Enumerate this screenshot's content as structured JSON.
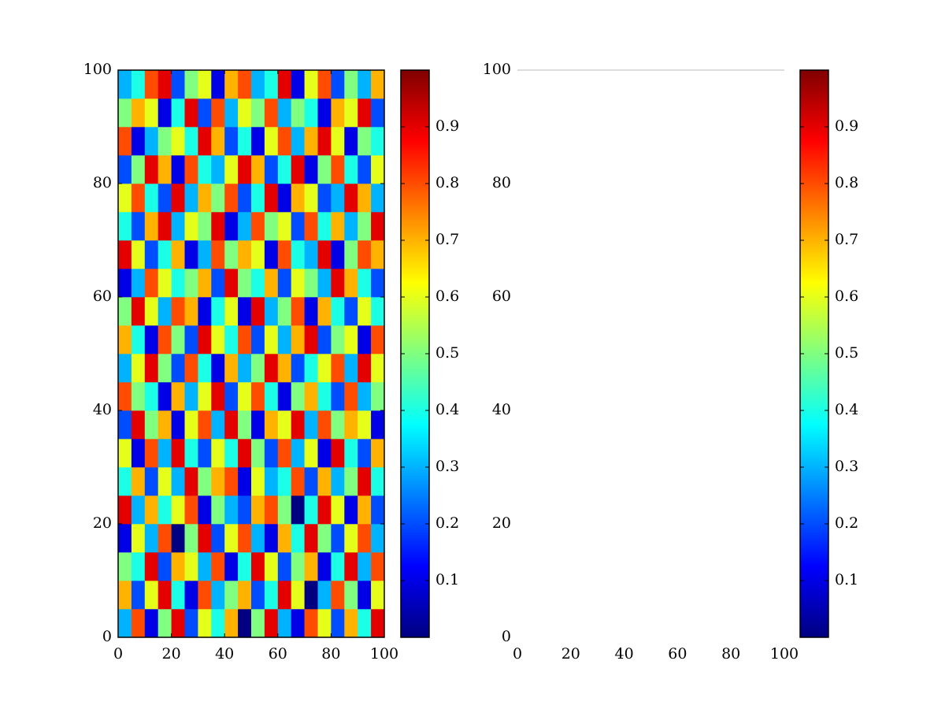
{
  "chart_data": [
    {
      "type": "heatmap",
      "xlim": [
        0,
        100
      ],
      "ylim": [
        0,
        100
      ],
      "xticks": [
        0,
        20,
        40,
        60,
        80,
        100
      ],
      "yticks": [
        0,
        20,
        40,
        60,
        80,
        100
      ],
      "frame": true,
      "colormap": "jet",
      "clim": [
        0,
        1
      ],
      "colorbar_ticks": [
        0.1,
        0.2,
        0.3,
        0.4,
        0.5,
        0.6,
        0.7,
        0.8,
        0.9
      ],
      "values": [
        [
          0.3,
          0.8,
          0.1,
          0.5,
          0.9,
          0.2,
          0.6,
          0.4,
          0.7,
          0.0,
          0.5,
          0.9,
          0.3,
          0.1,
          0.8,
          0.6,
          0.2,
          0.7,
          0.4,
          0.9
        ],
        [
          0.7,
          0.2,
          0.6,
          0.9,
          0.4,
          0.1,
          0.8,
          0.3,
          0.5,
          0.7,
          0.2,
          0.4,
          0.9,
          0.6,
          0.0,
          0.3,
          0.8,
          0.5,
          0.1,
          0.6
        ],
        [
          0.5,
          0.4,
          0.9,
          0.2,
          0.7,
          0.6,
          0.3,
          0.8,
          0.1,
          0.4,
          0.9,
          0.6,
          0.2,
          0.5,
          0.7,
          0.1,
          0.4,
          0.9,
          0.3,
          0.8
        ],
        [
          0.1,
          0.6,
          0.3,
          0.8,
          0.0,
          0.5,
          0.9,
          0.2,
          0.6,
          0.8,
          0.3,
          0.1,
          0.7,
          0.4,
          0.9,
          0.5,
          0.2,
          0.6,
          0.8,
          0.3
        ],
        [
          0.9,
          0.3,
          0.7,
          0.4,
          0.6,
          0.8,
          0.1,
          0.5,
          0.3,
          0.2,
          0.7,
          0.8,
          0.5,
          0.0,
          0.4,
          0.9,
          0.6,
          0.1,
          0.7,
          0.2
        ],
        [
          0.4,
          0.7,
          0.2,
          0.6,
          0.3,
          0.9,
          0.5,
          0.7,
          0.8,
          0.1,
          0.6,
          0.3,
          0.4,
          0.8,
          0.2,
          0.7,
          0.3,
          0.5,
          0.9,
          0.4
        ],
        [
          0.6,
          0.1,
          0.8,
          0.3,
          0.9,
          0.4,
          0.2,
          0.6,
          0.4,
          0.9,
          0.5,
          0.2,
          0.8,
          0.3,
          0.6,
          0.1,
          0.9,
          0.4,
          0.2,
          0.7
        ],
        [
          0.2,
          0.9,
          0.5,
          0.7,
          0.1,
          0.6,
          0.8,
          0.3,
          0.9,
          0.5,
          0.1,
          0.7,
          0.6,
          0.9,
          0.3,
          0.8,
          0.5,
          0.7,
          0.6,
          0.1
        ],
        [
          0.8,
          0.5,
          0.4,
          0.1,
          0.7,
          0.3,
          0.6,
          0.9,
          0.2,
          0.6,
          0.8,
          0.4,
          0.1,
          0.5,
          0.7,
          0.4,
          0.2,
          0.8,
          0.3,
          0.5
        ],
        [
          0.3,
          0.6,
          0.9,
          0.5,
          0.2,
          0.8,
          0.4,
          0.1,
          0.7,
          0.3,
          0.5,
          0.9,
          0.7,
          0.2,
          0.4,
          0.6,
          0.8,
          0.3,
          0.9,
          0.6
        ],
        [
          0.7,
          0.4,
          0.1,
          0.8,
          0.5,
          0.2,
          0.9,
          0.6,
          0.4,
          0.8,
          0.2,
          0.6,
          0.3,
          0.7,
          0.9,
          0.2,
          0.5,
          0.6,
          0.1,
          0.8
        ],
        [
          0.5,
          0.9,
          0.6,
          0.3,
          0.8,
          0.7,
          0.1,
          0.4,
          0.6,
          0.1,
          0.9,
          0.3,
          0.5,
          0.8,
          0.1,
          0.7,
          0.4,
          0.2,
          0.6,
          0.4
        ],
        [
          0.1,
          0.3,
          0.8,
          0.6,
          0.4,
          0.5,
          0.7,
          0.2,
          0.9,
          0.5,
          0.4,
          0.7,
          0.2,
          0.6,
          0.5,
          0.3,
          0.9,
          0.7,
          0.4,
          0.2
        ],
        [
          0.9,
          0.6,
          0.2,
          0.4,
          0.7,
          0.1,
          0.3,
          0.8,
          0.5,
          0.7,
          0.6,
          0.1,
          0.8,
          0.4,
          0.3,
          0.9,
          0.1,
          0.5,
          0.8,
          0.7
        ],
        [
          0.4,
          0.2,
          0.7,
          0.9,
          0.3,
          0.6,
          0.5,
          0.9,
          0.1,
          0.3,
          0.8,
          0.5,
          0.6,
          0.2,
          0.8,
          0.4,
          0.7,
          0.3,
          0.5,
          0.9
        ],
        [
          0.6,
          0.8,
          0.4,
          0.2,
          0.9,
          0.3,
          0.7,
          0.5,
          0.8,
          0.2,
          0.4,
          0.9,
          0.1,
          0.7,
          0.6,
          0.2,
          0.3,
          0.9,
          0.7,
          0.3
        ],
        [
          0.2,
          0.5,
          0.9,
          0.7,
          0.1,
          0.8,
          0.4,
          0.3,
          0.6,
          0.9,
          0.7,
          0.2,
          0.4,
          0.9,
          0.1,
          0.5,
          0.8,
          0.4,
          0.2,
          0.6
        ],
        [
          0.8,
          0.1,
          0.3,
          0.5,
          0.6,
          0.4,
          0.9,
          0.7,
          0.2,
          0.4,
          0.1,
          0.6,
          0.8,
          0.3,
          0.7,
          0.9,
          0.6,
          0.1,
          0.5,
          0.4
        ],
        [
          0.5,
          0.7,
          0.6,
          0.1,
          0.4,
          0.9,
          0.2,
          0.8,
          0.3,
          0.6,
          0.5,
          0.8,
          0.3,
          0.5,
          0.4,
          0.1,
          0.7,
          0.6,
          0.9,
          0.2
        ],
        [
          0.3,
          0.4,
          0.8,
          0.9,
          0.2,
          0.5,
          0.6,
          0.1,
          0.7,
          0.8,
          0.3,
          0.4,
          0.9,
          0.1,
          0.6,
          0.8,
          0.2,
          0.5,
          0.3,
          0.7
        ]
      ]
    },
    {
      "type": "heatmap",
      "xlim": [
        0,
        100
      ],
      "ylim": [
        0,
        100
      ],
      "xticks": [
        0,
        20,
        40,
        60,
        80,
        100
      ],
      "yticks": [
        0,
        20,
        40,
        60,
        80,
        100
      ],
      "frame": false,
      "colormap": "jet",
      "clim": [
        0,
        1
      ],
      "colorbar_ticks": [
        0.1,
        0.2,
        0.3,
        0.4,
        0.5,
        0.6,
        0.7,
        0.8,
        0.9
      ]
    }
  ]
}
